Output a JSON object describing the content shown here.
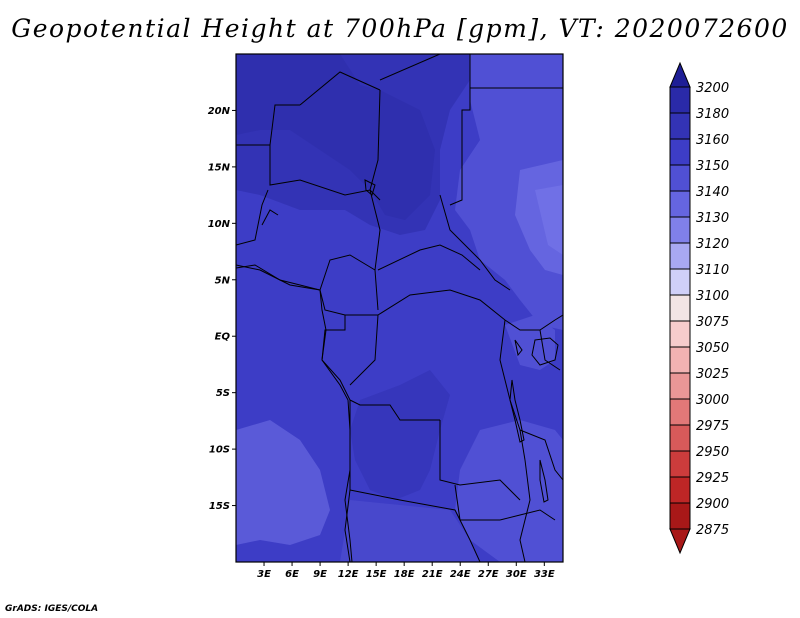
{
  "title": "Geopotential Height at 700hPa [gpm], VT: 2020072600",
  "credit": "GrADS: IGES/COLA",
  "map": {
    "lon_range": [
      0,
      35
    ],
    "lat_range": [
      -20,
      25
    ],
    "x_ticks": [
      "3E",
      "6E",
      "9E",
      "12E",
      "15E",
      "18E",
      "21E",
      "24E",
      "27E",
      "30E",
      "33E"
    ],
    "x_tick_values": [
      3,
      6,
      9,
      12,
      15,
      18,
      21,
      24,
      27,
      30,
      33
    ],
    "y_ticks": [
      "20N",
      "15N",
      "10N",
      "5N",
      "EQ",
      "5S",
      "10S",
      "15S"
    ],
    "y_tick_values": [
      20,
      15,
      10,
      5,
      0,
      -5,
      -10,
      -15
    ],
    "base_color": "#3d3dc6"
  },
  "colorbar": {
    "levels": [
      "3200",
      "3180",
      "3160",
      "3150",
      "3140",
      "3130",
      "3120",
      "3110",
      "3100",
      "3075",
      "3050",
      "3025",
      "3000",
      "2975",
      "2950",
      "2925",
      "2900",
      "2875"
    ],
    "colors": [
      "#1e1e96",
      "#2a2aa8",
      "#3333b5",
      "#3d3dc6",
      "#5050d4",
      "#6565e0",
      "#8080ea",
      "#a8a8f2",
      "#d0d0f8",
      "#f2e4e4",
      "#f6cccc",
      "#f2b2b2",
      "#ea9696",
      "#e27878",
      "#d85a5a",
      "#cc3c3c",
      "#be2626",
      "#a81818"
    ]
  }
}
